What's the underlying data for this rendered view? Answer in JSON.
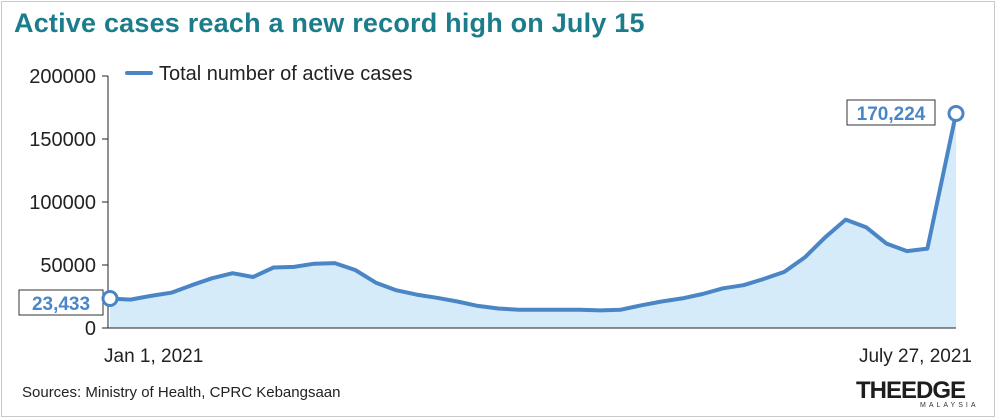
{
  "title": "Active cases reach a new record high on July 15",
  "source": "Sources: Ministry of Health, CPRC Kebangsaan",
  "logo": {
    "main": "THEEDGE",
    "sub": "MALAYSIA"
  },
  "colors": {
    "line": "#4a86c5",
    "fill": "#d6ebfa",
    "title": "#1b7d8c",
    "axis": "#222222"
  },
  "chart_data": {
    "type": "area",
    "title": "Active cases reach a new record high on July 15",
    "xlabel": "",
    "ylabel": "",
    "ylim": [
      0,
      200000
    ],
    "yticks": [
      0,
      50000,
      100000,
      150000,
      200000
    ],
    "ytick_labels": [
      "0",
      "50000",
      "100000",
      "150000",
      "200000"
    ],
    "x_start_label": "Jan 1, 2021",
    "x_end_label": "July 27, 2021",
    "legend": "Total number of active cases",
    "legend_position": "top-left",
    "grid": false,
    "series": [
      {
        "name": "Total number of active cases",
        "x": [
          "2021-01-01",
          "2021-01-06",
          "2021-01-11",
          "2021-01-16",
          "2021-01-21",
          "2021-01-26",
          "2021-01-31",
          "2021-02-05",
          "2021-02-10",
          "2021-02-15",
          "2021-02-20",
          "2021-02-25",
          "2021-03-02",
          "2021-03-07",
          "2021-03-12",
          "2021-03-17",
          "2021-03-22",
          "2021-03-27",
          "2021-04-01",
          "2021-04-06",
          "2021-04-11",
          "2021-04-16",
          "2021-04-21",
          "2021-04-26",
          "2021-05-01",
          "2021-05-06",
          "2021-05-11",
          "2021-05-16",
          "2021-05-21",
          "2021-05-26",
          "2021-05-31",
          "2021-06-05",
          "2021-06-10",
          "2021-06-15",
          "2021-06-20",
          "2021-06-25",
          "2021-06-30",
          "2021-07-05",
          "2021-07-10",
          "2021-07-15",
          "2021-07-20",
          "2021-07-27"
        ],
        "values": [
          23433,
          22500,
          25500,
          28000,
          34000,
          39500,
          43500,
          40500,
          48000,
          48500,
          51000,
          51500,
          46000,
          36000,
          30000,
          26500,
          24000,
          21000,
          17500,
          15500,
          14500,
          14500,
          14500,
          14500,
          14000,
          14500,
          18000,
          21000,
          23500,
          27000,
          31500,
          34000,
          39000,
          44500,
          56000,
          72000,
          86000,
          80000,
          67000,
          61000,
          63000,
          170224
        ]
      }
    ],
    "annotations": [
      {
        "x": "2021-01-01",
        "value": 23433,
        "label": "23,433"
      },
      {
        "x": "2021-07-27",
        "value": 170224,
        "label": "170,224"
      }
    ]
  }
}
